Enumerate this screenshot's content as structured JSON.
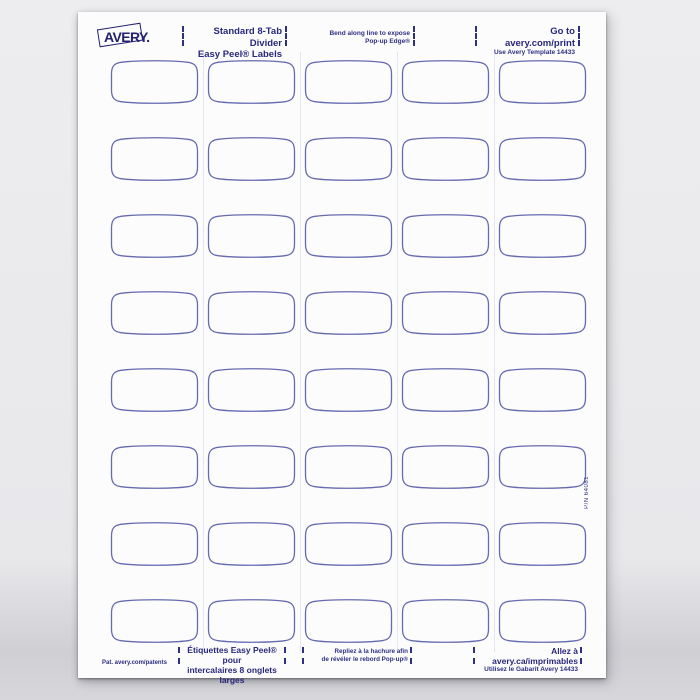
{
  "header": {
    "brand": "AVERY.",
    "product": {
      "line1": "Standard 8-Tab Divider",
      "line2": "Easy Peel® Labels"
    },
    "instruction": {
      "line1": "Bend along line to expose",
      "line2": "Pop-up Edge®"
    },
    "web": {
      "line1": "Go to avery.com/print",
      "line2": "Use Avery Template 14433"
    }
  },
  "grid": {
    "rows": 8,
    "cols": 5,
    "label_count": 40
  },
  "footer": {
    "patents": "Pat. avery.com/patents",
    "product_fr": {
      "line1": "Étiquettes Easy Peel® pour",
      "line2": "intercalaires 8 onglets larges"
    },
    "instruction_fr": {
      "line1": "Repliez à la hachure afin",
      "line2": "de révéler le rebord Pop-up®"
    },
    "web_fr": {
      "line1": "Allez à avery.ca/imprimables",
      "line2": "Utilisez le Gabarit Avery 14433"
    }
  },
  "side": {
    "part_number": "P/N 64081"
  },
  "colors": {
    "ink": "#2f2f82",
    "label_outline": "#666aae",
    "logo": "#232370",
    "sheet": "#fcfcfd",
    "background": "#e8e8eb"
  }
}
